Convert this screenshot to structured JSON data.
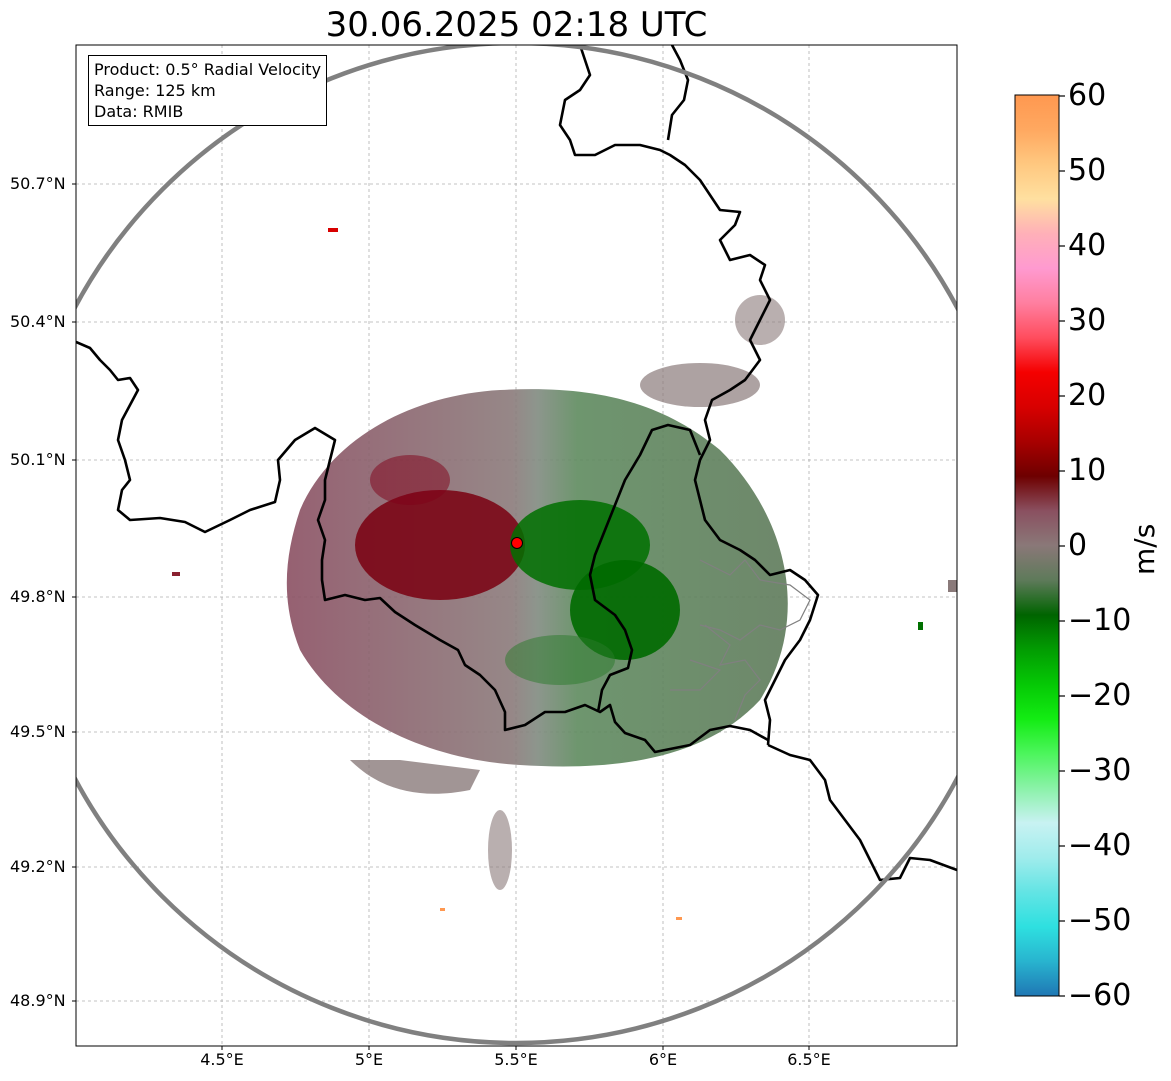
{
  "title": "30.06.2025 02:18 UTC",
  "info": {
    "product": "Product: 0.5° Radial Velocity",
    "range": "Range: 125 km",
    "data": "Data: RMIB"
  },
  "axes": {
    "lon_ticks": [
      "4.5°E",
      "5°E",
      "5.5°E",
      "6°E",
      "6.5°E"
    ],
    "lat_ticks": [
      "50.7°N",
      "50.4°N",
      "50.1°N",
      "49.8°N",
      "49.5°N",
      "49.2°N",
      "48.9°N"
    ],
    "lon_range": [
      4.0,
      7.0
    ],
    "lat_range": [
      48.8,
      51.0
    ]
  },
  "radar": {
    "lon": 5.505,
    "lat": 49.914,
    "range_km": 125
  },
  "colorbar": {
    "label": "m/s",
    "ticks": [
      "60",
      "50",
      "40",
      "30",
      "20",
      "10",
      "0",
      "−10",
      "−20",
      "−30",
      "−40",
      "−50",
      "−60"
    ],
    "vmin": -60,
    "vmax": 60,
    "stops": [
      "#1f77b4",
      "#28b4cf",
      "#2ee0e0",
      "#63e4e4",
      "#a0ecec",
      "#c8f2f2",
      "#8af2a8",
      "#4cf55c",
      "#13ec13",
      "#05c805",
      "#029c02",
      "#006400",
      "#5e7a5a",
      "#8a7878",
      "#8a5060",
      "#6e0000",
      "#a80000",
      "#d80000",
      "#f50000",
      "#ff4d5e",
      "#ff7fa0",
      "#ff9ad0",
      "#ffb0b8",
      "#ffe0a0",
      "#ffc880",
      "#ffa860",
      "#ff9850"
    ]
  },
  "colors": {
    "approaching": "#007000",
    "receding": "#7a0010",
    "neutral": "#8a7a7a",
    "range_ring": "#808080",
    "border": "#000000",
    "admin_border": "#808080"
  }
}
